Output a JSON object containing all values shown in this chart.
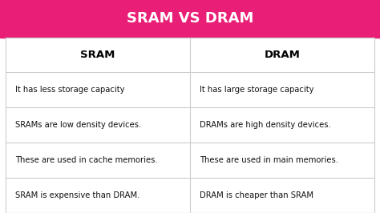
{
  "title": "SRAM VS DRAM",
  "title_bg_color": "#E91E76",
  "title_text_color": "#FFFFFF",
  "header_left": "SRAM",
  "header_right": "DRAM",
  "header_bg_color": "#FFFFFF",
  "header_text_color": "#000000",
  "table_bg_color": "#FFFFFF",
  "table_border_color": "#CCCCCC",
  "body_text_color": "#111111",
  "rows": [
    [
      "It has less storage capacity",
      "It has large storage capacity"
    ],
    [
      "SRAMs are low density devices.",
      "DRAMs are high density devices."
    ],
    [
      "These are used in cache memories.",
      "These are used in main memories."
    ],
    [
      "SRAM is expensive than DRAM.",
      "DRAM is cheaper than SRAM"
    ]
  ],
  "fig_width": 4.74,
  "fig_height": 2.66,
  "dpi": 100
}
